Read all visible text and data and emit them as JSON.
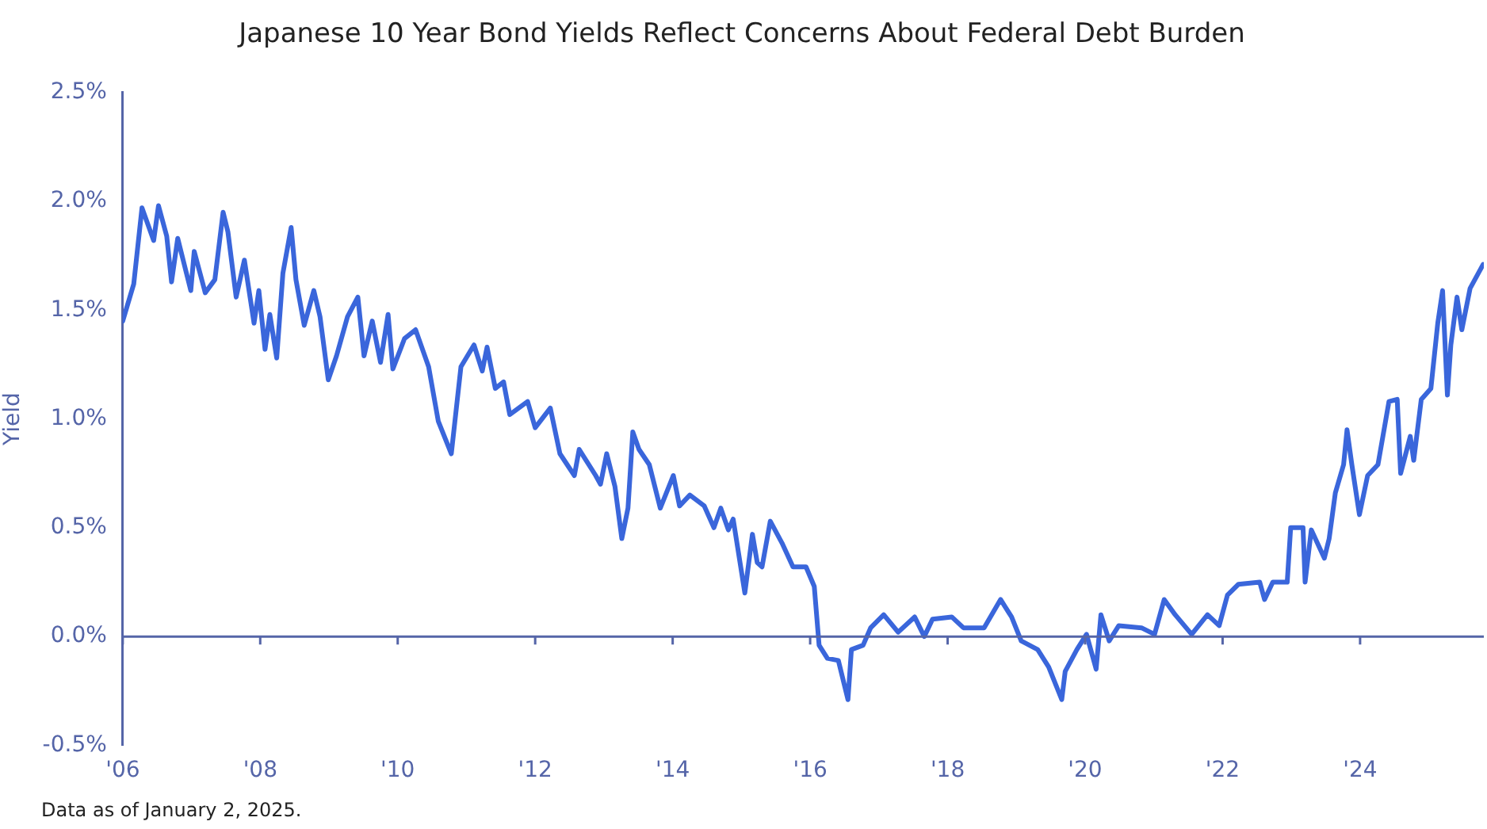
{
  "chart_data": {
    "type": "line",
    "title": "Japanese 10 Year Bond Yields Reflect Concerns About Federal Debt Burden",
    "ylabel": "Yield",
    "annotations": [
      "Data as of January 2, 2025."
    ],
    "xlim": [
      2006,
      2025.8
    ],
    "xticks": [
      {
        "value": 2006,
        "label": "'06"
      },
      {
        "value": 2008,
        "label": "'08"
      },
      {
        "value": 2010,
        "label": "'10"
      },
      {
        "value": 2012,
        "label": "'12"
      },
      {
        "value": 2014,
        "label": "'14"
      },
      {
        "value": 2016,
        "label": "'16"
      },
      {
        "value": 2018,
        "label": "'18"
      },
      {
        "value": 2020,
        "label": "'20"
      },
      {
        "value": 2022,
        "label": "'22"
      },
      {
        "value": 2024,
        "label": "'24"
      }
    ],
    "ylim": [
      -0.5,
      2.5
    ],
    "yticks": [
      {
        "value": -0.5,
        "label": "-0.5%"
      },
      {
        "value": 0,
        "label": "0.0%"
      },
      {
        "value": 0.5,
        "label": "0.5%"
      },
      {
        "value": 1,
        "label": "1.0%"
      },
      {
        "value": 1.5,
        "label": "1.5%"
      },
      {
        "value": 2,
        "label": "2.0%"
      },
      {
        "value": 2.5,
        "label": "2.5%"
      }
    ],
    "grid": false,
    "legend": false,
    "marker": "none",
    "line_style": "solid",
    "ref_lines": [
      {
        "axis": "y",
        "value": 0,
        "color": "#5565a8"
      }
    ],
    "series": [
      {
        "color": "#3a66db",
        "x": [
          2006.0,
          2006.16,
          2006.28,
          2006.45,
          2006.52,
          2006.64,
          2006.71,
          2006.8,
          2006.99,
          2007.04,
          2007.2,
          2007.34,
          2007.46,
          2007.53,
          2007.65,
          2007.77,
          2007.91,
          2007.98,
          2008.07,
          2008.14,
          2008.24,
          2008.33,
          2008.45,
          2008.52,
          2008.64,
          2008.78,
          2008.87,
          2008.99,
          2009.11,
          2009.27,
          2009.42,
          2009.51,
          2009.63,
          2009.75,
          2009.86,
          2009.93,
          2010.1,
          2010.26,
          2010.45,
          2010.59,
          2010.78,
          2010.92,
          2011.11,
          2011.23,
          2011.3,
          2011.42,
          2011.54,
          2011.63,
          2011.89,
          2012.0,
          2012.22,
          2012.36,
          2012.57,
          2012.64,
          2012.88,
          2012.95,
          2013.04,
          2013.16,
          2013.26,
          2013.35,
          2013.42,
          2013.51,
          2013.66,
          2013.82,
          2014.01,
          2014.1,
          2014.25,
          2014.46,
          2014.6,
          2014.7,
          2014.81,
          2014.88,
          2015.05,
          2015.16,
          2015.23,
          2015.3,
          2015.42,
          2015.59,
          2015.75,
          2015.94,
          2016.06,
          2016.13,
          2016.25,
          2016.41,
          2016.55,
          2016.6,
          2016.77,
          2016.88,
          2017.07,
          2017.28,
          2017.52,
          2017.66,
          2017.78,
          2018.06,
          2018.23,
          2018.53,
          2018.77,
          2018.93,
          2019.07,
          2019.31,
          2019.47,
          2019.66,
          2019.71,
          2019.88,
          2020.02,
          2020.16,
          2020.23,
          2020.35,
          2020.49,
          2020.82,
          2021.01,
          2021.15,
          2021.31,
          2021.55,
          2021.78,
          2021.95,
          2022.07,
          2022.23,
          2022.54,
          2022.61,
          2022.73,
          2022.94,
          2022.99,
          2023.17,
          2023.2,
          2023.29,
          2023.48,
          2023.55,
          2023.64,
          2023.76,
          2023.81,
          2023.88,
          2023.99,
          2024.11,
          2024.26,
          2024.42,
          2024.54,
          2024.59,
          2024.73,
          2024.78,
          2024.89,
          2025.03,
          2025.13,
          2025.2,
          2025.27,
          2025.32,
          2025.41,
          2025.48,
          2025.6,
          2025.79
        ],
        "values": [
          1.45,
          1.62,
          1.97,
          1.82,
          1.98,
          1.84,
          1.63,
          1.83,
          1.59,
          1.77,
          1.58,
          1.64,
          1.95,
          1.86,
          1.56,
          1.73,
          1.44,
          1.59,
          1.32,
          1.48,
          1.28,
          1.67,
          1.88,
          1.64,
          1.43,
          1.59,
          1.47,
          1.18,
          1.29,
          1.47,
          1.56,
          1.29,
          1.45,
          1.26,
          1.48,
          1.23,
          1.37,
          1.41,
          1.24,
          0.99,
          0.84,
          1.24,
          1.34,
          1.22,
          1.33,
          1.14,
          1.17,
          1.02,
          1.08,
          0.96,
          1.05,
          0.84,
          0.74,
          0.86,
          0.74,
          0.7,
          0.84,
          0.69,
          0.45,
          0.59,
          0.94,
          0.86,
          0.79,
          0.59,
          0.74,
          0.6,
          0.65,
          0.6,
          0.5,
          0.59,
          0.49,
          0.54,
          0.2,
          0.47,
          0.34,
          0.32,
          0.53,
          0.43,
          0.32,
          0.32,
          0.23,
          -0.04,
          -0.1,
          -0.11,
          -0.29,
          -0.06,
          -0.04,
          0.04,
          0.1,
          0.02,
          0.09,
          0.0,
          0.08,
          0.09,
          0.04,
          0.04,
          0.17,
          0.09,
          -0.02,
          -0.06,
          -0.14,
          -0.29,
          -0.16,
          -0.06,
          0.01,
          -0.15,
          0.1,
          -0.02,
          0.05,
          0.04,
          0.01,
          0.17,
          0.1,
          0.01,
          0.1,
          0.05,
          0.19,
          0.24,
          0.25,
          0.17,
          0.25,
          0.25,
          0.5,
          0.5,
          0.25,
          0.49,
          0.36,
          0.45,
          0.66,
          0.79,
          0.95,
          0.79,
          0.56,
          0.74,
          0.79,
          1.08,
          1.09,
          0.75,
          0.92,
          0.81,
          1.09,
          1.14,
          1.44,
          1.59,
          1.11,
          1.34,
          1.56,
          1.41,
          1.6,
          1.71
        ]
      }
    ]
  }
}
